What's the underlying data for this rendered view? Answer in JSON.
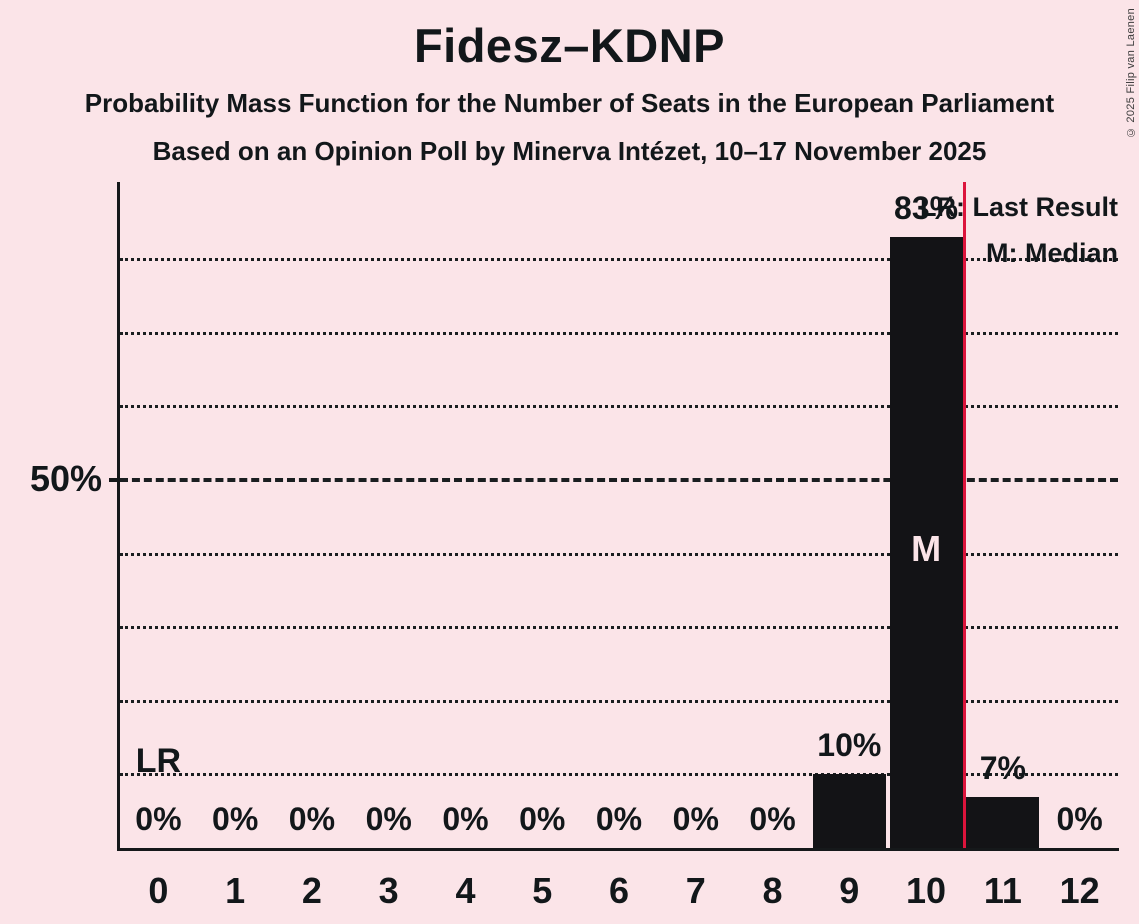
{
  "header": {
    "title": "Fidesz–KDNP",
    "subtitle1": "Probability Mass Function for the Number of Seats in the European Parliament",
    "subtitle2": "Based on an Opinion Poll by Minerva Intézet, 10–17 November 2025",
    "copyright": "© 2025 Filip van Laenen"
  },
  "legend": {
    "lr": "LR: Last Result",
    "m": "M: Median"
  },
  "y_axis": {
    "tick_label": "50%",
    "tick_value": 50
  },
  "chart_data": {
    "type": "bar",
    "title": "Fidesz–KDNP",
    "xlabel": "",
    "ylabel": "",
    "categories": [
      "0",
      "1",
      "2",
      "3",
      "4",
      "5",
      "6",
      "7",
      "8",
      "9",
      "10",
      "11",
      "12"
    ],
    "values": [
      0,
      0,
      0,
      0,
      0,
      0,
      0,
      0,
      0,
      10,
      83,
      7,
      0
    ],
    "value_labels": [
      "0%",
      "0%",
      "0%",
      "0%",
      "0%",
      "0%",
      "0%",
      "0%",
      "0%",
      "10%",
      "83%",
      "7%",
      "0%"
    ],
    "ylim": [
      0,
      90.5
    ],
    "y_tick_values": [
      50
    ],
    "gridlines_pct": [
      10,
      20,
      30,
      40,
      50,
      60,
      70,
      80
    ],
    "emphasized_gridline_pct": 50,
    "grid_style": "dotted-horizontal",
    "legend_position": "top-right",
    "median_marker": "M",
    "median_seat_index": 10,
    "last_result_marker": "LR",
    "last_result_label_seat_index": 0,
    "last_result_line_x": 10.5
  },
  "colors": {
    "background": "#fbe4e8",
    "bar": "#131316",
    "text": "#12171a",
    "last_result_line": "#dc143c",
    "median_label_text": "#fbe4e8"
  }
}
